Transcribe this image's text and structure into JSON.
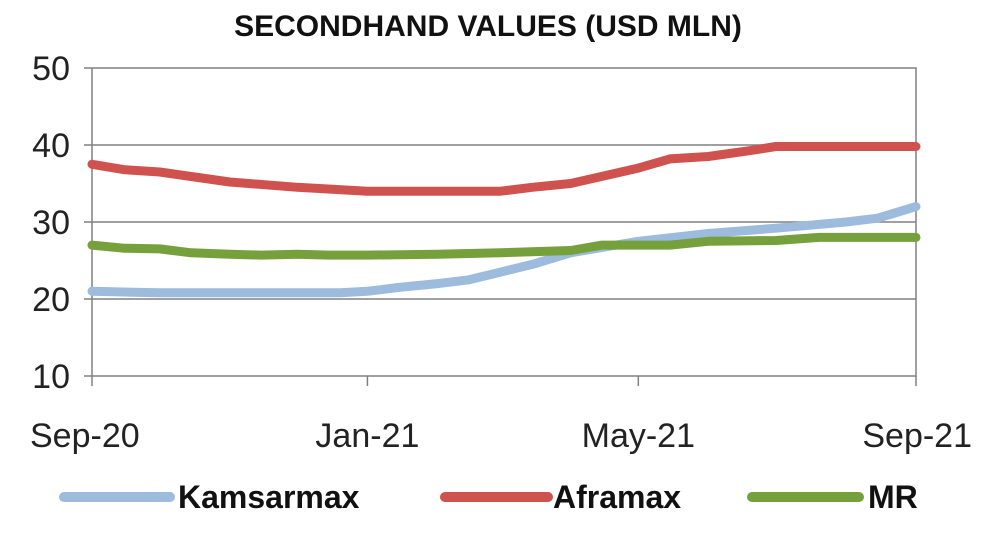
{
  "chart_data": {
    "type": "line",
    "title": "SECONDHAND VALUES (USD MLN)",
    "xlabel": "",
    "ylabel": "",
    "ylim": [
      10,
      50
    ],
    "y_ticks": [
      10,
      20,
      30,
      40,
      50
    ],
    "x_range": [
      "2020-09-01",
      "2021-09-01"
    ],
    "x_tick_labels": [
      {
        "date": "2020-09-01",
        "label": "Sep-20"
      },
      {
        "date": "2021-01-01",
        "label": "Jan-21"
      },
      {
        "date": "2021-05-01",
        "label": "May-21"
      },
      {
        "date": "2021-09-01",
        "label": "Sep-21"
      }
    ],
    "grid": true,
    "legend_position": "bottom",
    "series": [
      {
        "name": "Kamsarmax",
        "color": "#9dbbdd",
        "points": [
          [
            "2020-09-01",
            21
          ],
          [
            "2020-10-01",
            20.8
          ],
          [
            "2020-11-01",
            20.8
          ],
          [
            "2020-12-01",
            20.8
          ],
          [
            "2020-12-20",
            20.8
          ],
          [
            "2021-01-01",
            21
          ],
          [
            "2021-01-15",
            21.5
          ],
          [
            "2021-02-01",
            22
          ],
          [
            "2021-02-15",
            22.5
          ],
          [
            "2021-03-01",
            23.5
          ],
          [
            "2021-03-15",
            24.5
          ],
          [
            "2021-04-01",
            26
          ],
          [
            "2021-05-01",
            27.5
          ],
          [
            "2021-06-01",
            28.5
          ],
          [
            "2021-07-01",
            29.2
          ],
          [
            "2021-08-01",
            30
          ],
          [
            "2021-08-15",
            30.5
          ],
          [
            "2021-09-01",
            32
          ]
        ]
      },
      {
        "name": "Aframax",
        "color": "#cf524e",
        "points": [
          [
            "2020-09-01",
            37.5
          ],
          [
            "2020-09-15",
            36.8
          ],
          [
            "2020-10-01",
            36.5
          ],
          [
            "2020-11-01",
            35.2
          ],
          [
            "2020-12-01",
            34.5
          ],
          [
            "2021-01-01",
            34
          ],
          [
            "2021-02-01",
            34
          ],
          [
            "2021-03-01",
            34
          ],
          [
            "2021-03-15",
            34.5
          ],
          [
            "2021-04-01",
            35
          ],
          [
            "2021-05-01",
            37
          ],
          [
            "2021-05-15",
            38.2
          ],
          [
            "2021-06-01",
            38.5
          ],
          [
            "2021-06-20",
            39.3
          ],
          [
            "2021-07-01",
            39.8
          ],
          [
            "2021-08-01",
            39.8
          ],
          [
            "2021-09-01",
            39.8
          ]
        ]
      },
      {
        "name": "MR",
        "color": "#76a03c",
        "points": [
          [
            "2020-09-01",
            27
          ],
          [
            "2020-09-15",
            26.6
          ],
          [
            "2020-10-01",
            26.5
          ],
          [
            "2020-10-15",
            26
          ],
          [
            "2020-11-01",
            25.8
          ],
          [
            "2020-11-15",
            25.7
          ],
          [
            "2020-12-01",
            25.8
          ],
          [
            "2020-12-15",
            25.7
          ],
          [
            "2021-01-01",
            25.7
          ],
          [
            "2021-02-01",
            25.8
          ],
          [
            "2021-03-01",
            26
          ],
          [
            "2021-04-01",
            26.3
          ],
          [
            "2021-04-15",
            27
          ],
          [
            "2021-05-15",
            27
          ],
          [
            "2021-06-01",
            27.5
          ],
          [
            "2021-07-01",
            27.6
          ],
          [
            "2021-07-20",
            28
          ],
          [
            "2021-09-01",
            28
          ]
        ]
      }
    ]
  }
}
